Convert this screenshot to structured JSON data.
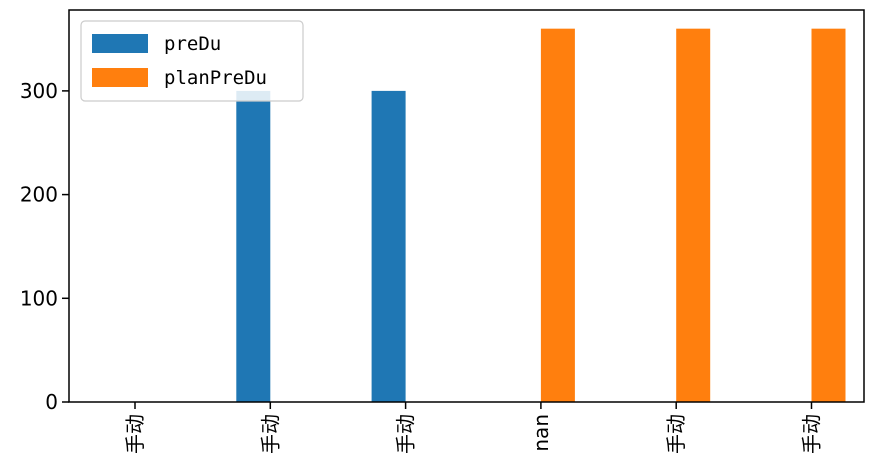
{
  "chart_data": {
    "type": "bar",
    "categories": [
      "手动",
      "手动",
      "手动",
      "nan",
      "手动",
      "手动"
    ],
    "series": [
      {
        "name": "preDu",
        "values": [
          0,
          300,
          300,
          0,
          0,
          0
        ],
        "color": "#1f77b4"
      },
      {
        "name": "planPreDu",
        "values": [
          0,
          0,
          0,
          360,
          360,
          360
        ],
        "color": "#ff7f0e"
      }
    ],
    "title": "",
    "xlabel": "",
    "ylabel": "",
    "ylim": [
      0,
      378
    ],
    "yticks": [
      0,
      100,
      200,
      300
    ],
    "grid": false,
    "legend_position": "top-left"
  }
}
